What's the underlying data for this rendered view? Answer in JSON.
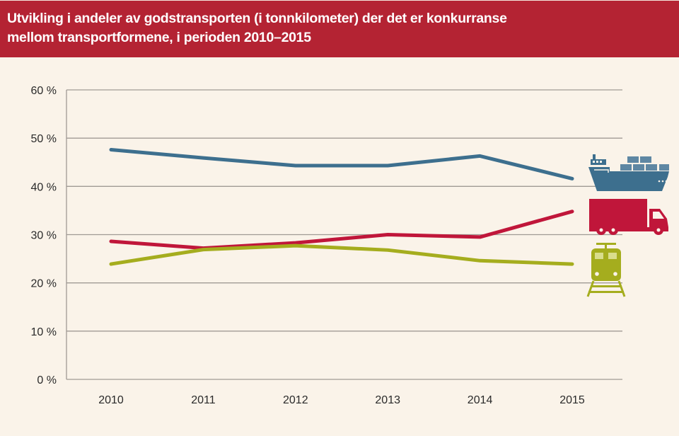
{
  "header": {
    "title_line1": "Utvikling i andeler av godstransporten (i tonnkilometer) der det er konkurranse",
    "title_line2": "mellom transportformene, i perioden 2010–2015"
  },
  "chart_data": {
    "type": "line",
    "title": "Utvikling i andeler av godstransporten (i tonnkilometer) der det er konkurranse mellom transportformene, i perioden 2010–2015",
    "xlabel": "",
    "ylabel": "",
    "x": [
      "2010",
      "2011",
      "2012",
      "2013",
      "2014",
      "2015"
    ],
    "ylim": [
      0,
      60
    ],
    "yticks": [
      0,
      10,
      20,
      30,
      40,
      50,
      60
    ],
    "ytick_labels": [
      "0 %",
      "10 %",
      "20 %",
      "30 %",
      "40 %",
      "50 %",
      "60 %"
    ],
    "grid": true,
    "legend": "icons at right end of each line",
    "series": [
      {
        "name": "Sjø",
        "icon": "ship-icon",
        "color": "#3d6f8e",
        "values": [
          47.6,
          45.9,
          44.3,
          44.3,
          46.3,
          41.6
        ]
      },
      {
        "name": "Vei",
        "icon": "truck-icon",
        "color": "#c0163a",
        "values": [
          28.6,
          27.2,
          28.3,
          30.0,
          29.5,
          34.8
        ]
      },
      {
        "name": "Bane",
        "icon": "train-icon",
        "color": "#a5ad1e",
        "values": [
          23.9,
          26.9,
          27.7,
          26.8,
          24.6,
          23.9
        ]
      }
    ]
  }
}
